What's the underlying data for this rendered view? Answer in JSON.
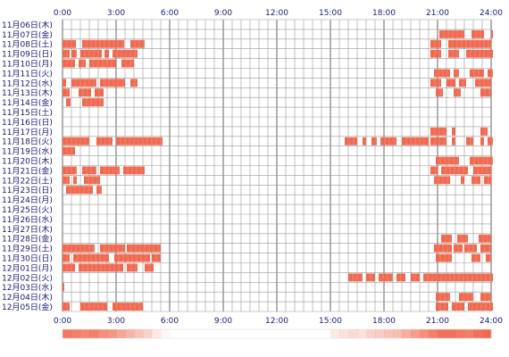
{
  "chart_data": {
    "type": "heatmap",
    "title": "",
    "xlabel": "",
    "ylabel": "",
    "x_unit": "hour of day",
    "xlim": [
      0,
      24
    ],
    "x_ticks": [
      "0:00",
      "3:00",
      "6:00",
      "9:00",
      "12:00",
      "15:00",
      "18:00",
      "21:00",
      "24:00"
    ],
    "grid": true,
    "bar_color": "#f06a50",
    "bar_edge_color": "#ffffff",
    "grid_color": "#999999",
    "footer_heat_color": "#f06a50",
    "days": [
      {
        "label": "11月06日(木)",
        "segments": []
      },
      {
        "label": "11月07日(金)",
        "segments": [
          [
            21.1,
            22.5
          ],
          [
            22.9,
            23.6
          ],
          [
            24.0,
            24.3
          ]
        ]
      },
      {
        "label": "11月08日(土)",
        "segments": [
          [
            0.0,
            0.75
          ],
          [
            1.1,
            3.45
          ],
          [
            3.8,
            4.6
          ],
          [
            20.6,
            21.2
          ],
          [
            21.6,
            24.0
          ]
        ]
      },
      {
        "label": "11月09日(日)",
        "segments": [
          [
            0.0,
            0.4
          ],
          [
            0.5,
            0.8
          ],
          [
            1.0,
            2.2
          ],
          [
            2.35,
            2.6
          ],
          [
            2.8,
            4.2
          ],
          [
            20.6,
            21.2
          ],
          [
            21.6,
            22.2
          ],
          [
            22.6,
            24.1
          ]
        ]
      },
      {
        "label": "11月10日(月)",
        "segments": [
          [
            0.0,
            0.7
          ],
          [
            0.9,
            1.3
          ],
          [
            1.5,
            3.0
          ],
          [
            3.3,
            4.0
          ]
        ]
      },
      {
        "label": "11月11日(火)",
        "segments": [
          [
            20.8,
            21.7
          ],
          [
            21.9,
            22.2
          ],
          [
            22.8,
            23.6
          ],
          [
            23.8,
            24.3
          ]
        ]
      },
      {
        "label": "11月12日(水)",
        "segments": [
          [
            0.0,
            0.2
          ],
          [
            0.5,
            1.9
          ],
          [
            2.1,
            3.5
          ],
          [
            3.8,
            4.2
          ],
          [
            20.6,
            21.2
          ],
          [
            21.5,
            22.0
          ],
          [
            22.2,
            22.6
          ],
          [
            23.1,
            24.0
          ]
        ]
      },
      {
        "label": "11月13日(木)",
        "segments": [
          [
            0.0,
            0.4
          ],
          [
            0.9,
            1.6
          ],
          [
            1.8,
            2.3
          ],
          [
            20.9,
            21.3
          ],
          [
            21.9,
            22.3
          ],
          [
            23.4,
            24.0
          ]
        ]
      },
      {
        "label": "11月14日(金)",
        "segments": [
          [
            0.2,
            0.45
          ],
          [
            1.1,
            2.3
          ]
        ]
      },
      {
        "label": "11月15日(土)",
        "segments": []
      },
      {
        "label": "11月16日(日)",
        "segments": []
      },
      {
        "label": "11月17日(月)",
        "segments": [
          [
            20.6,
            21.5
          ],
          [
            21.8,
            22.0
          ],
          [
            23.4,
            23.8
          ]
        ]
      },
      {
        "label": "11月18日(火)",
        "segments": [
          [
            0.0,
            1.5
          ],
          [
            1.9,
            2.8
          ],
          [
            3.0,
            5.6
          ],
          [
            15.8,
            16.5
          ],
          [
            16.8,
            17.0
          ],
          [
            17.3,
            17.6
          ],
          [
            17.8,
            18.7
          ],
          [
            19.0,
            20.5
          ],
          [
            20.6,
            21.5
          ],
          [
            21.8,
            22.0
          ],
          [
            22.6,
            23.0
          ],
          [
            23.4,
            23.6
          ],
          [
            23.8,
            24.3
          ]
        ]
      },
      {
        "label": "11月19日(水)",
        "segments": [
          [
            0.0,
            0.7
          ]
        ]
      },
      {
        "label": "11月20日(木)",
        "segments": [
          [
            20.9,
            22.2
          ],
          [
            22.8,
            24.3
          ]
        ]
      },
      {
        "label": "11月21日(金)",
        "segments": [
          [
            0.0,
            0.8
          ],
          [
            1.1,
            1.9
          ],
          [
            2.1,
            3.2
          ],
          [
            3.4,
            4.6
          ],
          [
            20.6,
            21.0
          ],
          [
            21.2,
            22.7
          ],
          [
            23.0,
            24.0
          ]
        ]
      },
      {
        "label": "11月22日(土)",
        "segments": [
          [
            0.0,
            0.4
          ],
          [
            0.6,
            0.8
          ],
          [
            1.2,
            2.1
          ],
          [
            20.8,
            21.7
          ],
          [
            22.3,
            22.5
          ],
          [
            22.9,
            23.4
          ],
          [
            23.6,
            24.0
          ]
        ]
      },
      {
        "label": "11月23日(日)",
        "segments": [
          [
            0.2,
            1.7
          ],
          [
            1.9,
            2.2
          ]
        ]
      },
      {
        "label": "11月24日(月)",
        "segments": []
      },
      {
        "label": "11月25日(火)",
        "segments": []
      },
      {
        "label": "11月26日(水)",
        "segments": []
      },
      {
        "label": "11月27日(木)",
        "segments": []
      },
      {
        "label": "11月28日(金)",
        "segments": [
          [
            21.2,
            21.8
          ],
          [
            22.1,
            22.7
          ],
          [
            23.3,
            24.0
          ]
        ]
      },
      {
        "label": "11月29日(土)",
        "segments": [
          [
            0.0,
            1.8
          ],
          [
            2.1,
            3.5
          ],
          [
            3.6,
            5.5
          ],
          [
            20.8,
            21.8
          ],
          [
            21.9,
            22.4
          ],
          [
            22.5,
            23.2
          ],
          [
            23.4,
            24.0
          ]
        ]
      },
      {
        "label": "11月30日(日)",
        "segments": [
          [
            0.0,
            0.4
          ],
          [
            0.6,
            2.6
          ],
          [
            2.9,
            4.9
          ],
          [
            5.0,
            5.5
          ],
          [
            20.9,
            21.8
          ],
          [
            22.9,
            23.4
          ],
          [
            23.7,
            24.0
          ]
        ]
      },
      {
        "label": "12月01日(月)",
        "segments": [
          [
            0.0,
            0.7
          ],
          [
            0.9,
            3.4
          ],
          [
            3.6,
            4.2
          ],
          [
            4.6,
            5.1
          ]
        ]
      },
      {
        "label": "12月02日(火)",
        "segments": [
          [
            16.0,
            16.8
          ],
          [
            17.0,
            17.5
          ],
          [
            17.7,
            18.5
          ],
          [
            18.7,
            19.2
          ],
          [
            19.5,
            20.0
          ],
          [
            20.2,
            24.1
          ]
        ]
      },
      {
        "label": "12月03日(水)",
        "segments": [
          [
            0.0,
            0.1
          ]
        ]
      },
      {
        "label": "12月04日(木)",
        "segments": [
          [
            20.9,
            21.7
          ],
          [
            22.2,
            23.0
          ],
          [
            23.4,
            24.0
          ]
        ]
      },
      {
        "label": "12月05日(金)",
        "segments": [
          [
            0.0,
            0.4
          ],
          [
            1.0,
            2.5
          ],
          [
            2.8,
            4.5
          ],
          [
            20.9,
            21.6
          ],
          [
            21.8,
            22.5
          ],
          [
            22.7,
            24.2
          ]
        ]
      }
    ],
    "footer_heat": [
      0.9,
      0.85,
      0.8,
      0.85,
      0.75,
      0.7,
      0.6,
      0.5,
      0.4,
      0.3,
      0.15,
      0.05,
      0.0,
      0.0,
      0.0,
      0.0,
      0.0,
      0.0,
      0.0,
      0.0,
      0.0,
      0.0,
      0.0,
      0.0,
      0.0,
      0.0,
      0.0,
      0.0,
      0.0,
      0.0,
      0.15,
      0.2,
      0.25,
      0.2,
      0.3,
      0.35,
      0.4,
      0.45,
      0.55,
      0.65,
      0.75,
      0.85,
      0.95,
      0.95,
      0.9,
      0.85,
      0.95,
      1.0
    ]
  }
}
